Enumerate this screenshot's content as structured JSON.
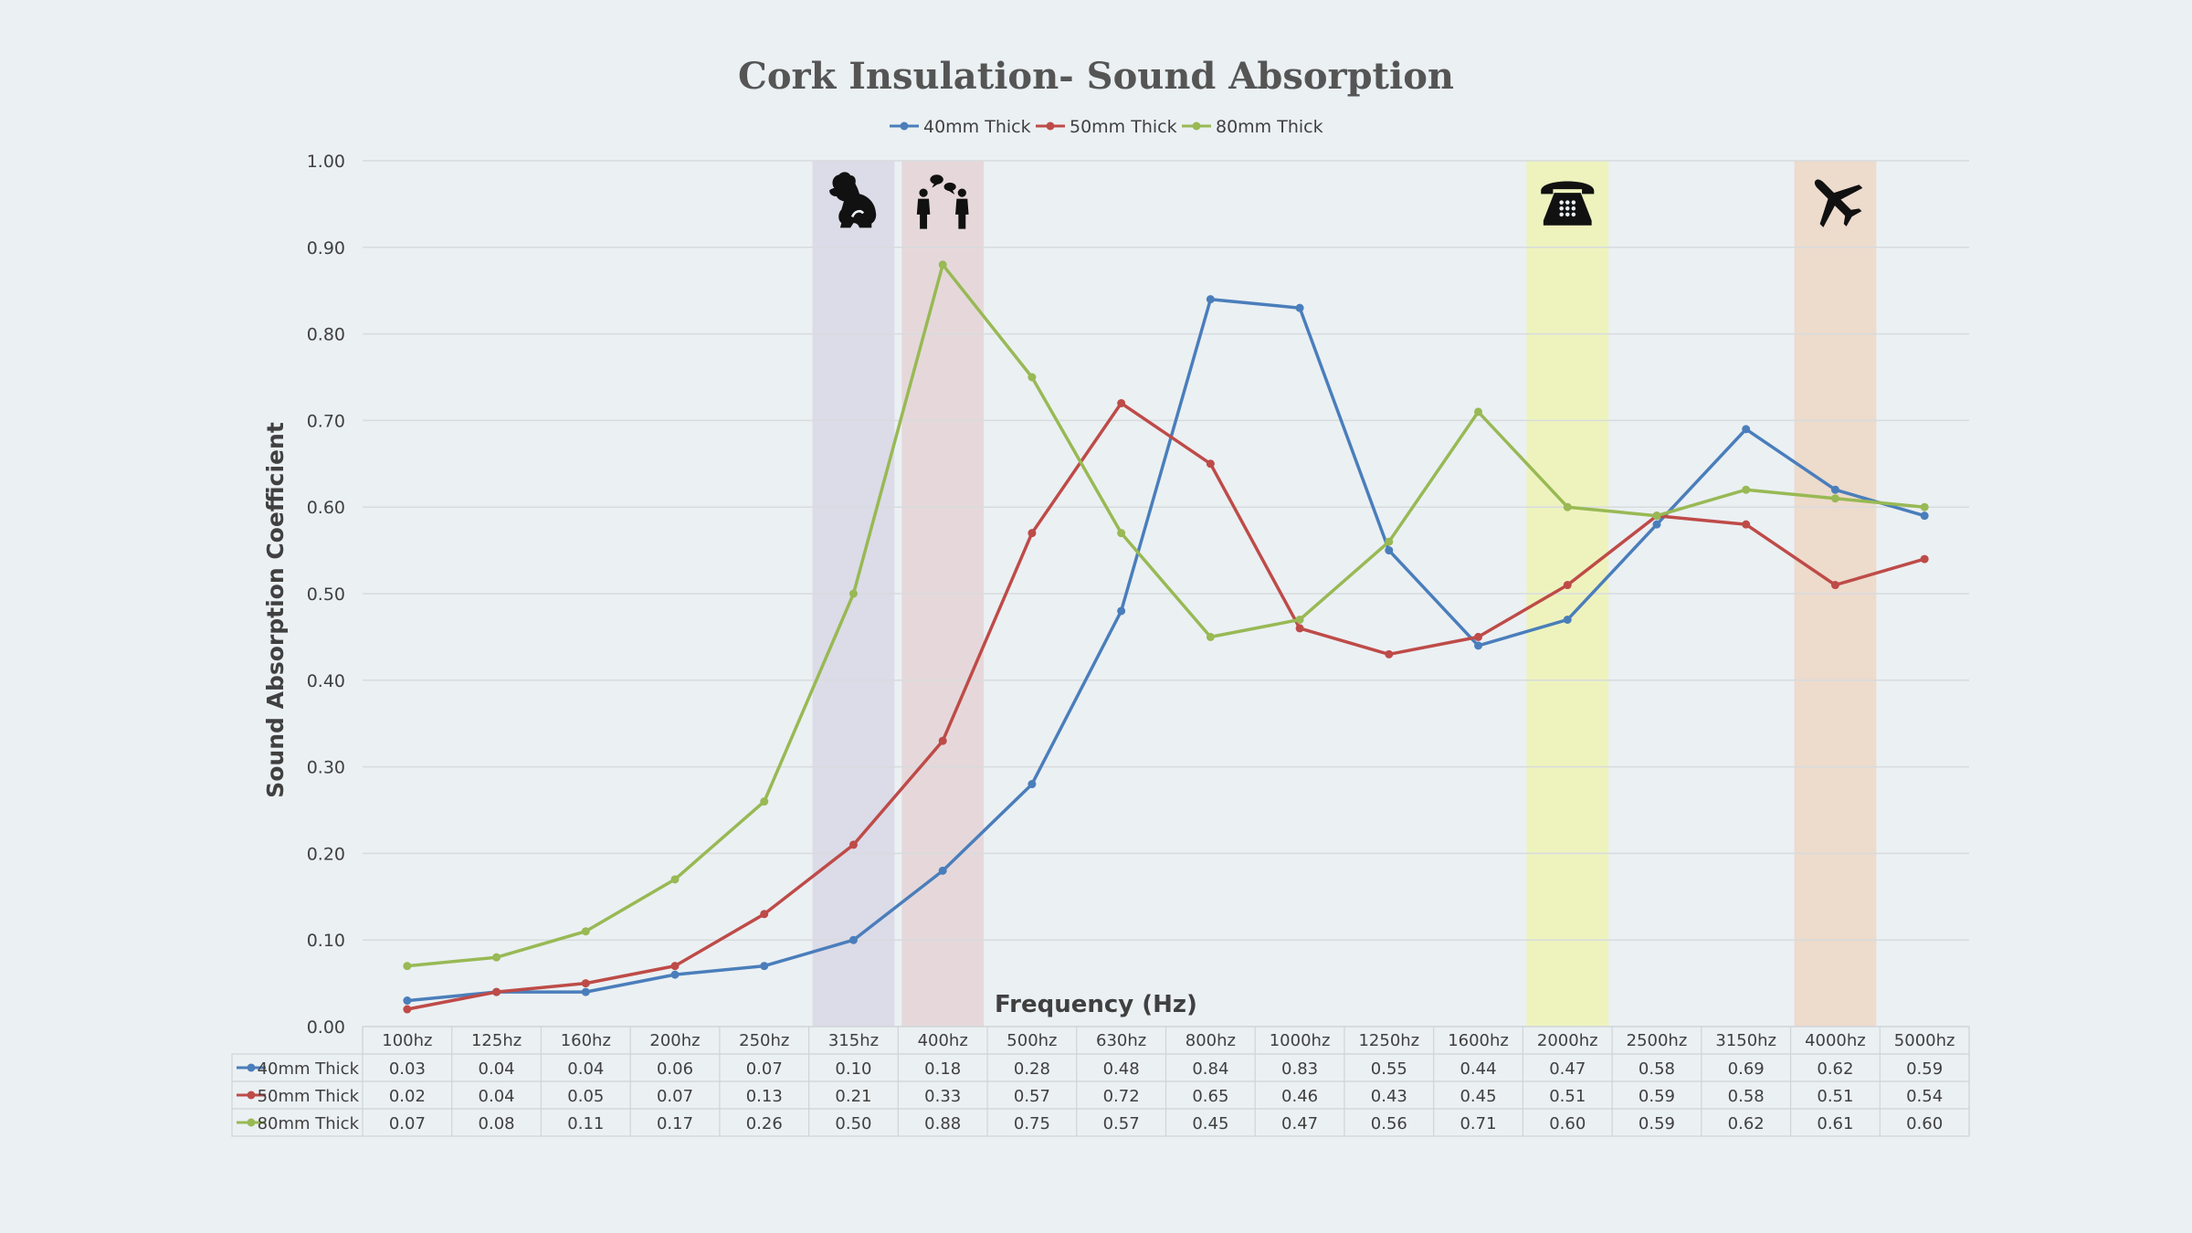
{
  "chart_data": {
    "type": "line",
    "title": "Cork Insulation- Sound Absorption",
    "xlabel": "Frequency (Hz)",
    "ylabel": "Sound Absorption Coefficient",
    "ylim": [
      0,
      1
    ],
    "yticks": [
      "0.00",
      "0.10",
      "0.20",
      "0.30",
      "0.40",
      "0.50",
      "0.60",
      "0.70",
      "0.80",
      "0.90",
      "1.00"
    ],
    "grid": true,
    "legend_position": "top-center",
    "categories": [
      "100hz",
      "125hz",
      "160hz",
      "200hz",
      "250hz",
      "315hz",
      "400hz",
      "500hz",
      "630hz",
      "800hz",
      "1000hz",
      "1250hz",
      "1600hz",
      "2000hz",
      "2500hz",
      "3150hz",
      "4000hz",
      "5000hz"
    ],
    "series": [
      {
        "name": "40mm Thick",
        "color": "#4a7ebb",
        "values": [
          0.03,
          0.04,
          0.04,
          0.06,
          0.07,
          0.1,
          0.18,
          0.28,
          0.48,
          0.84,
          0.83,
          0.55,
          0.44,
          0.47,
          0.58,
          0.69,
          0.62,
          0.59
        ]
      },
      {
        "name": "50mm Thick",
        "color": "#be4b48",
        "values": [
          0.02,
          0.04,
          0.05,
          0.07,
          0.13,
          0.21,
          0.33,
          0.57,
          0.72,
          0.65,
          0.46,
          0.43,
          0.45,
          0.51,
          0.59,
          0.58,
          0.51,
          0.54
        ]
      },
      {
        "name": "80mm Thick",
        "color": "#98b954",
        "values": [
          0.07,
          0.08,
          0.11,
          0.17,
          0.26,
          0.5,
          0.88,
          0.75,
          0.57,
          0.45,
          0.47,
          0.56,
          0.71,
          0.6,
          0.59,
          0.62,
          0.61,
          0.6
        ]
      }
    ],
    "highlight_bands": [
      {
        "category": "315hz",
        "icon": "dog-icon",
        "color": "#dcdbe8"
      },
      {
        "category": "400hz",
        "icon": "people-talking-icon",
        "color": "#e6d8da"
      },
      {
        "category": "2000hz",
        "icon": "telephone-icon",
        "color": "#eef3bd"
      },
      {
        "category": "4000hz",
        "icon": "airplane-icon",
        "color": "#eddbcc"
      }
    ]
  }
}
